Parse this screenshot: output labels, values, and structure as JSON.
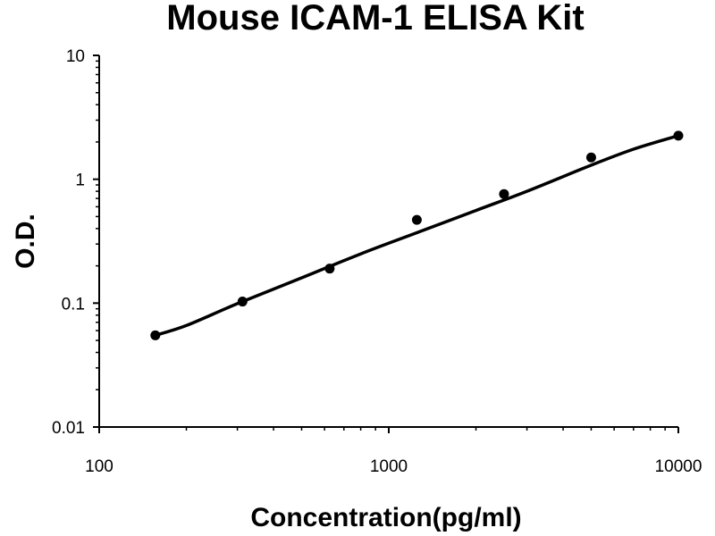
{
  "chart_data": {
    "type": "scatter",
    "title": "Mouse ICAM-1 ELISA Kit",
    "xlabel": "Concentration(pg/ml)",
    "ylabel": "O.D.",
    "x_scale": "log",
    "y_scale": "log",
    "xlim": [
      100,
      10000
    ],
    "ylim": [
      0.01,
      10
    ],
    "x_ticks": [
      {
        "value": 100,
        "label": "100"
      },
      {
        "value": 1000,
        "label": "1000"
      },
      {
        "value": 10000,
        "label": "10000"
      }
    ],
    "y_ticks": [
      {
        "value": 0.01,
        "label": "0.01"
      },
      {
        "value": 0.1,
        "label": "0.1"
      },
      {
        "value": 1,
        "label": "1"
      },
      {
        "value": 10,
        "label": "10"
      }
    ],
    "grid": false,
    "legend": "none",
    "series": [
      {
        "x": [
          156.25,
          312.5,
          625,
          1250,
          2500,
          5000,
          10000
        ],
        "y": [
          0.055,
          0.103,
          0.19,
          0.47,
          0.76,
          1.5,
          2.25
        ]
      }
    ],
    "fit_curve": {
      "x": [
        156.25,
        200,
        300,
        500,
        800,
        1250,
        2000,
        3000,
        5000,
        7000,
        10000
      ],
      "y": [
        0.055,
        0.066,
        0.099,
        0.16,
        0.25,
        0.37,
        0.56,
        0.8,
        1.3,
        1.75,
        2.25
      ]
    },
    "colors": {
      "marker": "#000000",
      "line": "#000000",
      "axis": "#000000"
    }
  }
}
